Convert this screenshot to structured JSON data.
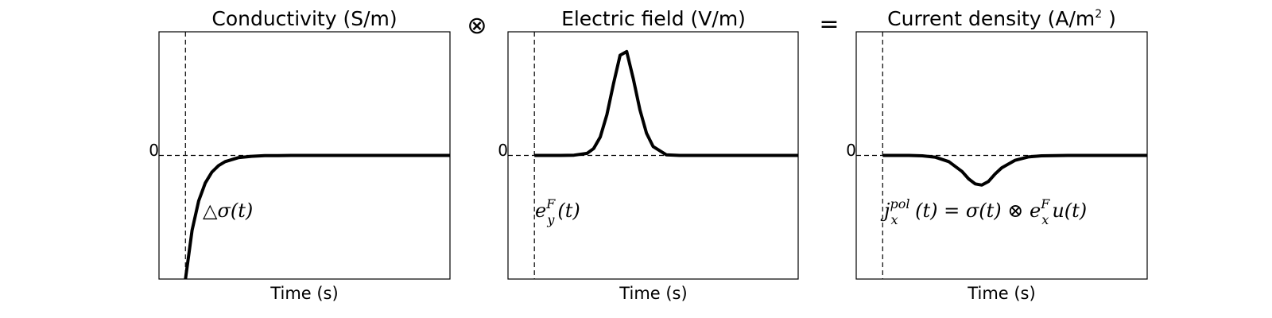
{
  "chart_data": [
    {
      "type": "line",
      "title": "Conductivity (S/m)",
      "xlabel": "Time (s)",
      "ylabel": "",
      "y_tick_labels": [
        "0"
      ],
      "xlim": [
        -1,
        10
      ],
      "ylim": [
        -1,
        1
      ],
      "grid": false,
      "reference_lines": {
        "vertical_x": 0,
        "horizontal_y": 0
      },
      "annotation": {
        "main": "△σ(t)"
      },
      "series": [
        {
          "x": [
            0,
            0.25,
            0.5,
            0.75,
            1,
            1.25,
            1.5,
            2,
            2.5,
            3,
            3.5,
            4,
            5,
            6,
            7,
            8,
            9,
            10
          ],
          "y": [
            -1,
            -0.606,
            -0.368,
            -0.223,
            -0.135,
            -0.082,
            -0.05,
            -0.018,
            -0.007,
            -0.002,
            -0.001,
            0,
            0,
            0,
            0,
            0,
            0,
            0
          ]
        }
      ]
    },
    {
      "type": "line",
      "title": "Electric field (V/m)",
      "xlabel": "Time (s)",
      "ylabel": "",
      "y_tick_labels": [
        "0"
      ],
      "xlim": [
        -1,
        10
      ],
      "ylim": [
        -1,
        1
      ],
      "grid": false,
      "reference_lines": {
        "vertical_x": 0,
        "horizontal_y": 0
      },
      "annotation": {
        "base": "e",
        "sub": "y",
        "sup": "F",
        "tail": "(t)"
      },
      "series": [
        {
          "x": [
            0,
            1,
            1.5,
            2,
            2.25,
            2.5,
            2.75,
            3,
            3.25,
            3.5,
            3.75,
            4,
            4.25,
            4.5,
            5,
            5.5,
            6,
            7,
            8,
            9,
            10
          ],
          "y": [
            0,
            0,
            0.002,
            0.017,
            0.056,
            0.15,
            0.33,
            0.58,
            0.81,
            0.84,
            0.62,
            0.37,
            0.18,
            0.072,
            0.005,
            0,
            0,
            0,
            0,
            0,
            0
          ]
        }
      ]
    },
    {
      "type": "line",
      "title": "Current density (A/m",
      "title_superscript": "2",
      "title_suffix": " )",
      "xlabel": "Time (s)",
      "ylabel": "",
      "y_tick_labels": [
        "0"
      ],
      "xlim": [
        -1,
        10
      ],
      "ylim": [
        -1,
        1
      ],
      "grid": false,
      "reference_lines": {
        "vertical_x": 0,
        "horizontal_y": 0
      },
      "annotation": {
        "base": "j",
        "sub": "x",
        "sup": "pol",
        "middle": " (t) = σ(t) ⊗ e",
        "sub2": "x",
        "sup2": "F",
        "tail": "u(t)"
      },
      "series": [
        {
          "x": [
            0,
            1,
            1.5,
            2,
            2.5,
            3,
            3.25,
            3.5,
            3.75,
            4,
            4.25,
            4.5,
            5,
            5.5,
            6,
            7,
            8,
            9,
            10
          ],
          "y": [
            0,
            0,
            -0.003,
            -0.015,
            -0.05,
            -0.13,
            -0.19,
            -0.23,
            -0.24,
            -0.21,
            -0.15,
            -0.1,
            -0.04,
            -0.012,
            -0.003,
            0,
            0,
            0,
            0
          ]
        }
      ]
    }
  ],
  "operators": {
    "convolve": "⊗",
    "equals": "="
  }
}
